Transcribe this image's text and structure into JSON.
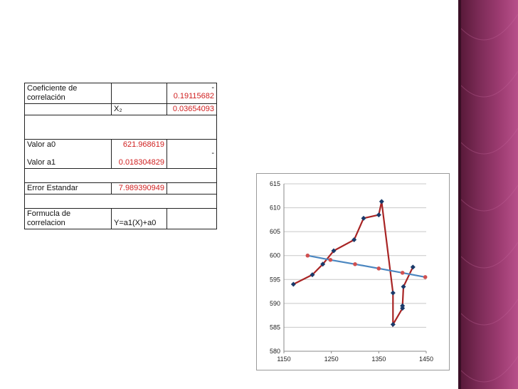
{
  "table": {
    "coef_label_1": "Coeficiente  de",
    "coef_label_2": "correlación",
    "coef_dash": "-",
    "coef_value": "0.19115682",
    "x2_label": "X₂",
    "x2_value": "0.03654093",
    "a0_label": "Valor a0",
    "a0_value": "621.968619",
    "a1_label": "Valor a1",
    "a1_dash": "-",
    "a1_value": "0.018304829",
    "err_label": "Error Estandar",
    "err_value": "7.989390949",
    "formula_label_1": "Formucla de",
    "formula_label_2": "correlacion",
    "formula_value": "Y=a1(X)+a0"
  },
  "colors": {
    "accent_red": "#d02020",
    "band": "#8a2f60",
    "series_observed_marker": "#1a3a6a",
    "series_observed_line": "#a82424",
    "series_fit_line": "#4a86c0",
    "series_fit_marker": "#d05050"
  },
  "chart_data": {
    "type": "scatter",
    "xlim": [
      1150,
      1450
    ],
    "ylim": [
      580,
      615
    ],
    "x_ticks": [
      1150,
      1250,
      1350,
      1450
    ],
    "y_ticks": [
      580,
      585,
      590,
      595,
      600,
      605,
      610,
      615
    ],
    "grid": "horizontal",
    "legend": "none",
    "series": [
      {
        "style": "line-markers",
        "points": [
          [
            1170,
            594
          ],
          [
            1210,
            596
          ],
          [
            1232,
            598.2
          ],
          [
            1255,
            601
          ],
          [
            1298,
            603.3
          ],
          [
            1318,
            607.8
          ],
          [
            1350,
            608.5
          ],
          [
            1356,
            611.3
          ],
          [
            1380,
            592.2
          ],
          [
            1380,
            585.6
          ],
          [
            1400,
            589
          ],
          [
            1400,
            589.5
          ],
          [
            1402,
            593.5
          ],
          [
            1422,
            597.6
          ]
        ]
      },
      {
        "style": "fit-line",
        "points": [
          [
            1200,
            600
          ],
          [
            1248,
            599.1
          ],
          [
            1300,
            598.2
          ],
          [
            1350,
            597.3
          ],
          [
            1400,
            596.4
          ],
          [
            1448,
            595.5
          ]
        ]
      }
    ]
  }
}
